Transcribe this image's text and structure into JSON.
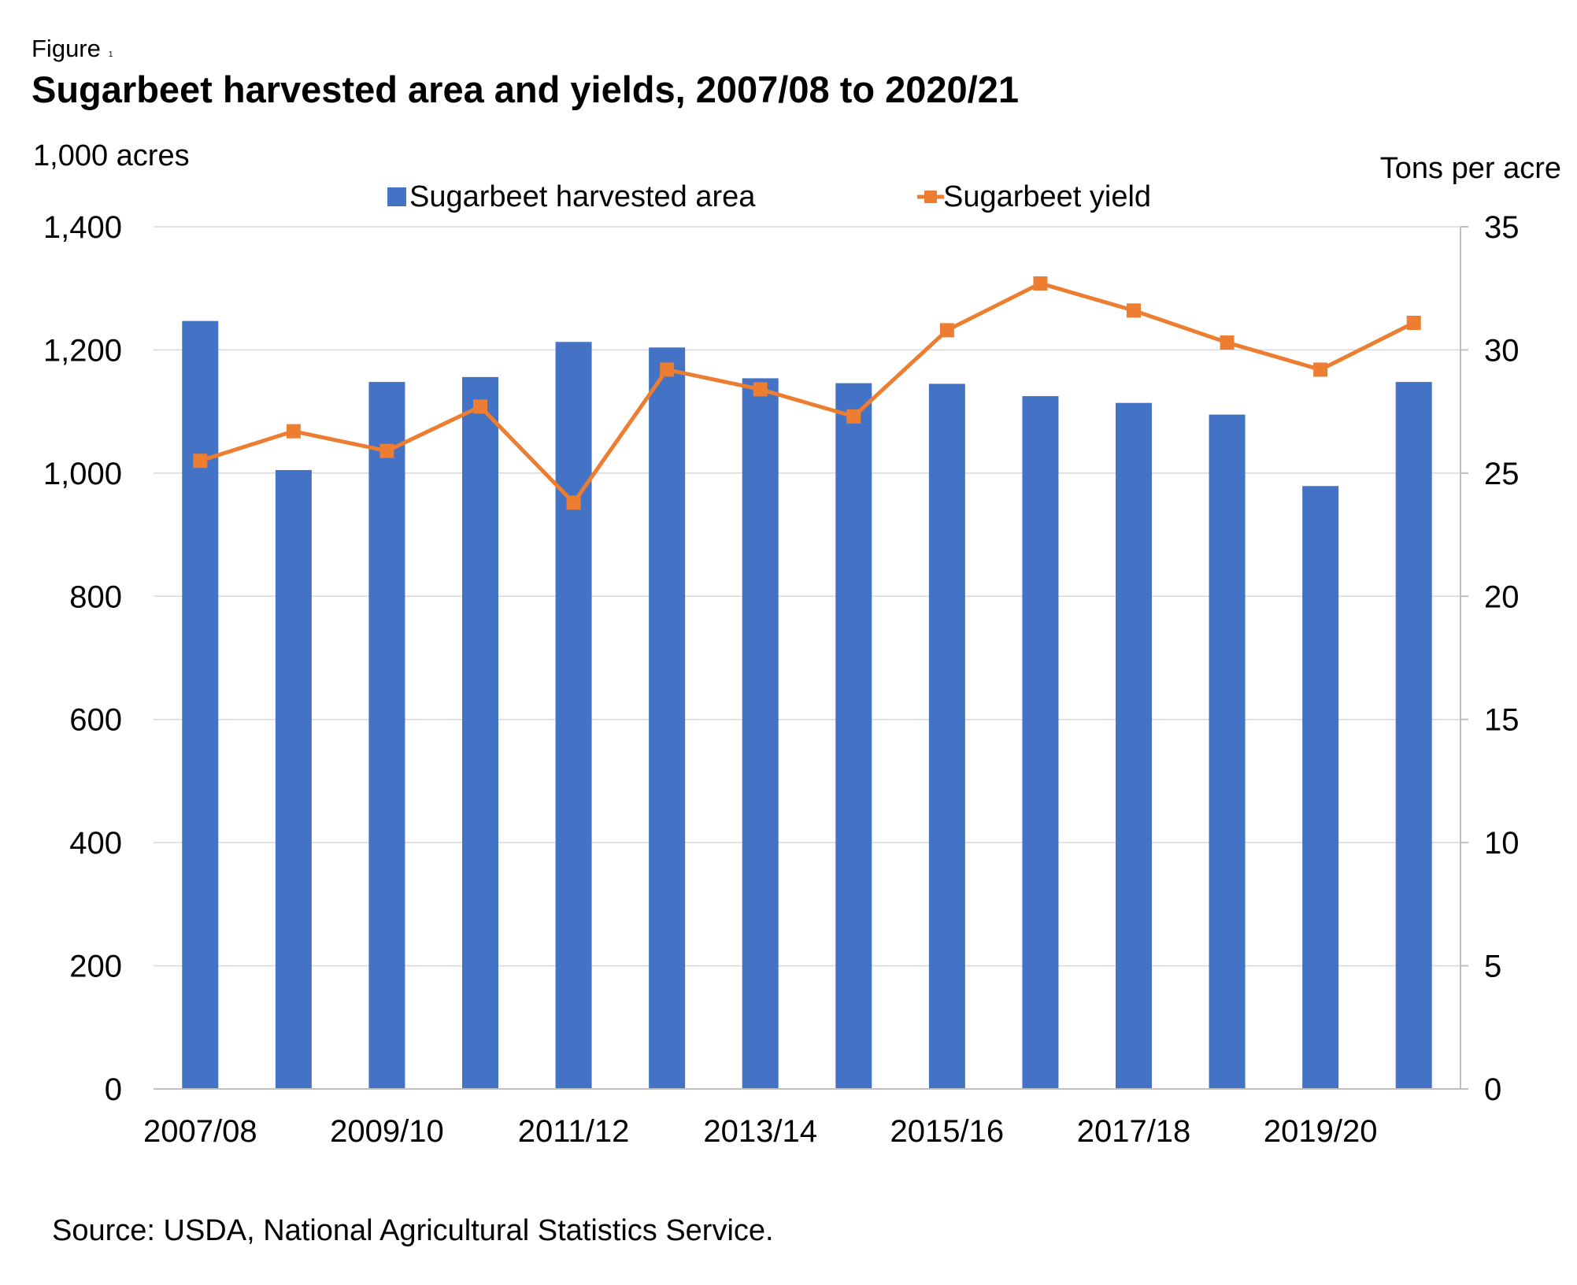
{
  "figure_label": "Figure",
  "figure_number": "1",
  "source": "Source: USDA, National Agricultural Statistics Service.",
  "chart_data": {
    "type": "bar",
    "title": "Sugarbeet harvested area and yields, 2007/08 to 2020/21",
    "xlabel": "",
    "ylabel": "1,000 acres",
    "y2label": "Tons per acre",
    "categories": [
      "2007/08",
      "2008/09",
      "2009/10",
      "2010/11",
      "2011/12",
      "2012/13",
      "2013/14",
      "2014/15",
      "2015/16",
      "2016/17",
      "2017/18",
      "2018/19",
      "2019/20",
      "2020/21"
    ],
    "x_tick_labels": [
      "2007/08",
      "",
      "2009/10",
      "",
      "2011/12",
      "",
      "2013/14",
      "",
      "2015/16",
      "",
      "2017/18",
      "",
      "2019/20",
      ""
    ],
    "ylim": [
      0,
      1400
    ],
    "y_ticks": [
      "0",
      "200",
      "400",
      "600",
      "800",
      "1,000",
      "1,200",
      "1,400"
    ],
    "y_tick_values": [
      0,
      200,
      400,
      600,
      800,
      1000,
      1200,
      1400
    ],
    "y2lim": [
      0,
      35
    ],
    "y2_ticks": [
      "0",
      "5",
      "10",
      "15",
      "20",
      "25",
      "30",
      "35"
    ],
    "y2_tick_values": [
      0,
      5,
      10,
      15,
      20,
      25,
      30,
      35
    ],
    "grid": true,
    "legend_position": "top",
    "series": [
      {
        "name": "Sugarbeet harvested area",
        "type": "bar",
        "axis": "left",
        "color": "#4472C4",
        "values": [
          1247,
          1005,
          1148,
          1156,
          1213,
          1204,
          1154,
          1146,
          1145,
          1125,
          1114,
          1095,
          979,
          1148
        ]
      },
      {
        "name": "Sugarbeet yield",
        "type": "line",
        "axis": "right",
        "color": "#ED7D31",
        "values": [
          25.5,
          26.7,
          25.9,
          27.7,
          23.8,
          29.2,
          28.4,
          27.3,
          30.8,
          32.7,
          31.6,
          30.3,
          29.2,
          31.1
        ]
      }
    ]
  }
}
